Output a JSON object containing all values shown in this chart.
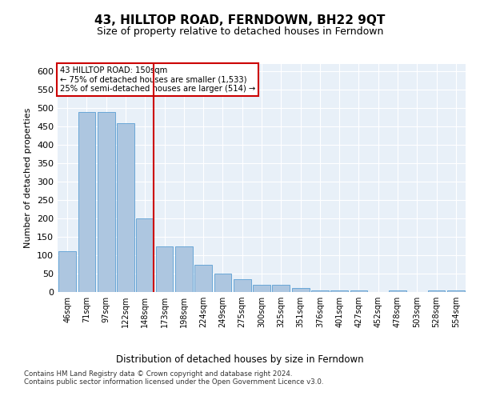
{
  "title": "43, HILLTOP ROAD, FERNDOWN, BH22 9QT",
  "subtitle": "Size of property relative to detached houses in Ferndown",
  "xlabel_bottom": "Distribution of detached houses by size in Ferndown",
  "ylabel": "Number of detached properties",
  "categories": [
    "46sqm",
    "71sqm",
    "97sqm",
    "122sqm",
    "148sqm",
    "173sqm",
    "198sqm",
    "224sqm",
    "249sqm",
    "275sqm",
    "300sqm",
    "325sqm",
    "351sqm",
    "376sqm",
    "401sqm",
    "427sqm",
    "452sqm",
    "478sqm",
    "503sqm",
    "528sqm",
    "554sqm"
  ],
  "values": [
    110,
    490,
    490,
    460,
    200,
    125,
    125,
    75,
    50,
    35,
    20,
    20,
    10,
    5,
    5,
    5,
    0,
    5,
    0,
    5,
    5
  ],
  "bar_color": "#adc6e0",
  "bar_edge_color": "#5a9fd4",
  "highlight_index": 4,
  "red_line_color": "#cc0000",
  "annotation_text": "43 HILLTOP ROAD: 150sqm\n← 75% of detached houses are smaller (1,533)\n25% of semi-detached houses are larger (514) →",
  "ylim": [
    0,
    620
  ],
  "yticks": [
    0,
    50,
    100,
    150,
    200,
    250,
    300,
    350,
    400,
    450,
    500,
    550,
    600
  ],
  "bg_color": "#e8f0f8",
  "grid_color": "#ffffff",
  "footer": "Contains HM Land Registry data © Crown copyright and database right 2024.\nContains public sector information licensed under the Open Government Licence v3.0.",
  "title_fontsize": 11,
  "subtitle_fontsize": 9,
  "annotation_box_color": "#ffffff",
  "annotation_box_edge": "#cc0000"
}
